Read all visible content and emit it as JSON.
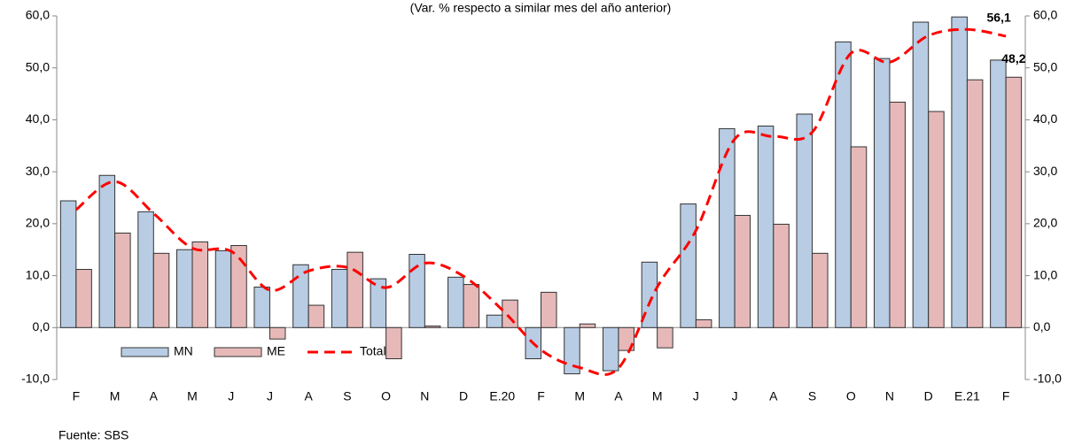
{
  "chart_data": {
    "type": "bar-line",
    "subtitle": "(Var. % respecto a similar mes del año anterior)",
    "note": "Fuente: SBS",
    "categories": [
      "F",
      "M",
      "A",
      "M",
      "J",
      "J",
      "A",
      "S",
      "O",
      "N",
      "D",
      "E.20",
      "F",
      "M",
      "A",
      "M",
      "J",
      "J",
      "A",
      "S",
      "O",
      "N",
      "D",
      "E.21",
      "F"
    ],
    "series": [
      {
        "name": "MN",
        "color": "#b8cce4",
        "kind": "bar",
        "values": [
          24.4,
          29.3,
          22.3,
          15.0,
          14.8,
          7.8,
          12.1,
          11.2,
          9.4,
          14.1,
          9.7,
          2.4,
          -6.0,
          -8.9,
          -8.3,
          12.6,
          23.8,
          38.3,
          38.8,
          41.1,
          55.0,
          51.8,
          58.8,
          59.8,
          51.5
        ]
      },
      {
        "name": "ME",
        "color": "#e6b9b8",
        "kind": "bar",
        "values": [
          11.2,
          18.2,
          14.3,
          16.5,
          15.8,
          -2.2,
          4.3,
          14.5,
          -6.0,
          0.3,
          8.3,
          5.3,
          6.8,
          0.7,
          -4.4,
          -3.9,
          1.5,
          21.6,
          19.9,
          14.3,
          34.8,
          43.4,
          41.6,
          47.7,
          48.2
        ],
        "value_labels": [
          null,
          null,
          null,
          null,
          null,
          null,
          null,
          null,
          null,
          null,
          null,
          null,
          null,
          null,
          null,
          null,
          null,
          null,
          null,
          null,
          null,
          null,
          null,
          null,
          "48,2"
        ]
      },
      {
        "name": "Total",
        "color": "#ff0000",
        "kind": "line",
        "values": [
          22.7,
          28.1,
          22.0,
          15.3,
          14.7,
          7.2,
          10.9,
          11.6,
          7.7,
          12.4,
          9.9,
          3.4,
          -4.3,
          -7.7,
          -7.8,
          7.8,
          18.7,
          36.3,
          36.8,
          37.6,
          52.8,
          51.1,
          56.2,
          57.4,
          56.1
        ],
        "value_labels": [
          null,
          null,
          null,
          null,
          null,
          null,
          null,
          null,
          null,
          null,
          null,
          null,
          null,
          null,
          null,
          null,
          null,
          null,
          null,
          null,
          null,
          null,
          null,
          null,
          "56,1"
        ]
      }
    ],
    "ylim": [
      -10,
      60
    ],
    "yticks": [
      {
        "value": -10,
        "label": "-10,0"
      },
      {
        "value": 0,
        "label": "0,0"
      },
      {
        "value": 10,
        "label": "10,0"
      },
      {
        "value": 20,
        "label": "20,0"
      },
      {
        "value": 30,
        "label": "30,0"
      },
      {
        "value": 40,
        "label": "40,0"
      },
      {
        "value": 50,
        "label": "50,0"
      },
      {
        "value": 60,
        "label": "60,0"
      }
    ],
    "y2lim": [
      -10,
      60
    ],
    "y2ticks": [
      {
        "value": -10,
        "label": "-10,0"
      },
      {
        "value": 0,
        "label": "0,0"
      },
      {
        "value": 10,
        "label": "10,0"
      },
      {
        "value": 20,
        "label": "20,0"
      },
      {
        "value": 30,
        "label": "30,0"
      },
      {
        "value": 40,
        "label": "40,0"
      },
      {
        "value": 50,
        "label": "50,0"
      },
      {
        "value": 60,
        "label": "60,0"
      }
    ],
    "grid": false,
    "legend": "lower left"
  }
}
